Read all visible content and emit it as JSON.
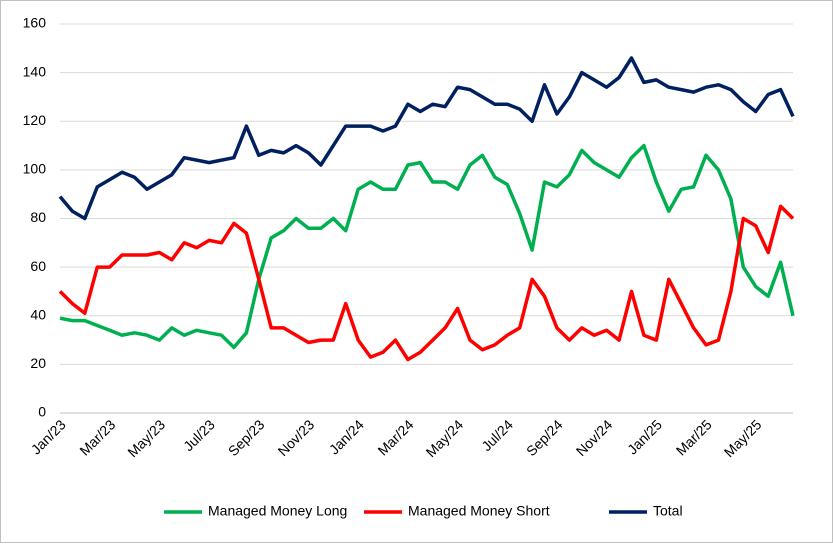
{
  "chart_data": {
    "type": "line",
    "categories": [
      "Jan/23",
      null,
      null,
      null,
      "Mar/23",
      null,
      null,
      null,
      "May/23",
      null,
      null,
      null,
      "Jul/23",
      null,
      null,
      null,
      "Sep/23",
      null,
      null,
      null,
      "Nov/23",
      null,
      null,
      null,
      "Jan/24",
      null,
      null,
      null,
      "Mar/24",
      null,
      null,
      null,
      "May/24",
      null,
      null,
      null,
      "Jul/24",
      null,
      null,
      null,
      "Sep/24",
      null,
      null,
      null,
      "Nov/24",
      null,
      null,
      null,
      "Jan/25",
      null,
      null,
      null,
      "Mar/25",
      null,
      null,
      null,
      "May/25",
      null,
      null,
      null
    ],
    "series": [
      {
        "name": "Managed Money Long",
        "color": "#00b050",
        "values": [
          39,
          38,
          38,
          36,
          34,
          32,
          33,
          32,
          30,
          35,
          32,
          34,
          33,
          32,
          27,
          33,
          55,
          72,
          75,
          80,
          76,
          76,
          80,
          75,
          92,
          95,
          92,
          92,
          102,
          103,
          95,
          95,
          92,
          102,
          106,
          97,
          94,
          82,
          67,
          95,
          93,
          98,
          108,
          103,
          100,
          97,
          105,
          110,
          95,
          83,
          92,
          93,
          106,
          100,
          88,
          60,
          52,
          48,
          62,
          40
        ]
      },
      {
        "name": "Managed Money Short",
        "color": "#ff0000",
        "values": [
          50,
          45,
          41,
          60,
          60,
          65,
          65,
          65,
          66,
          63,
          70,
          68,
          71,
          70,
          78,
          74,
          55,
          35,
          35,
          32,
          29,
          30,
          30,
          45,
          30,
          23,
          25,
          30,
          22,
          25,
          30,
          35,
          43,
          30,
          26,
          28,
          32,
          35,
          55,
          48,
          35,
          30,
          35,
          32,
          34,
          30,
          50,
          32,
          30,
          55,
          45,
          35,
          28,
          30,
          50,
          80,
          77,
          66,
          85,
          80
        ]
      },
      {
        "name": "Total",
        "color": "#002060",
        "values": [
          89,
          83,
          80,
          93,
          96,
          99,
          97,
          92,
          95,
          98,
          105,
          104,
          103,
          104,
          105,
          118,
          106,
          108,
          107,
          110,
          107,
          102,
          110,
          118,
          118,
          118,
          116,
          118,
          127,
          124,
          127,
          126,
          134,
          133,
          130,
          127,
          127,
          125,
          120,
          135,
          123,
          130,
          140,
          137,
          134,
          138,
          146,
          136,
          137,
          134,
          133,
          132,
          134,
          135,
          133,
          128,
          124,
          131,
          133,
          122
        ]
      }
    ],
    "ylim": [
      0,
      160
    ],
    "yticks": [
      0,
      20,
      40,
      60,
      80,
      100,
      120,
      140,
      160
    ],
    "grid": true,
    "legend": "bottom"
  }
}
